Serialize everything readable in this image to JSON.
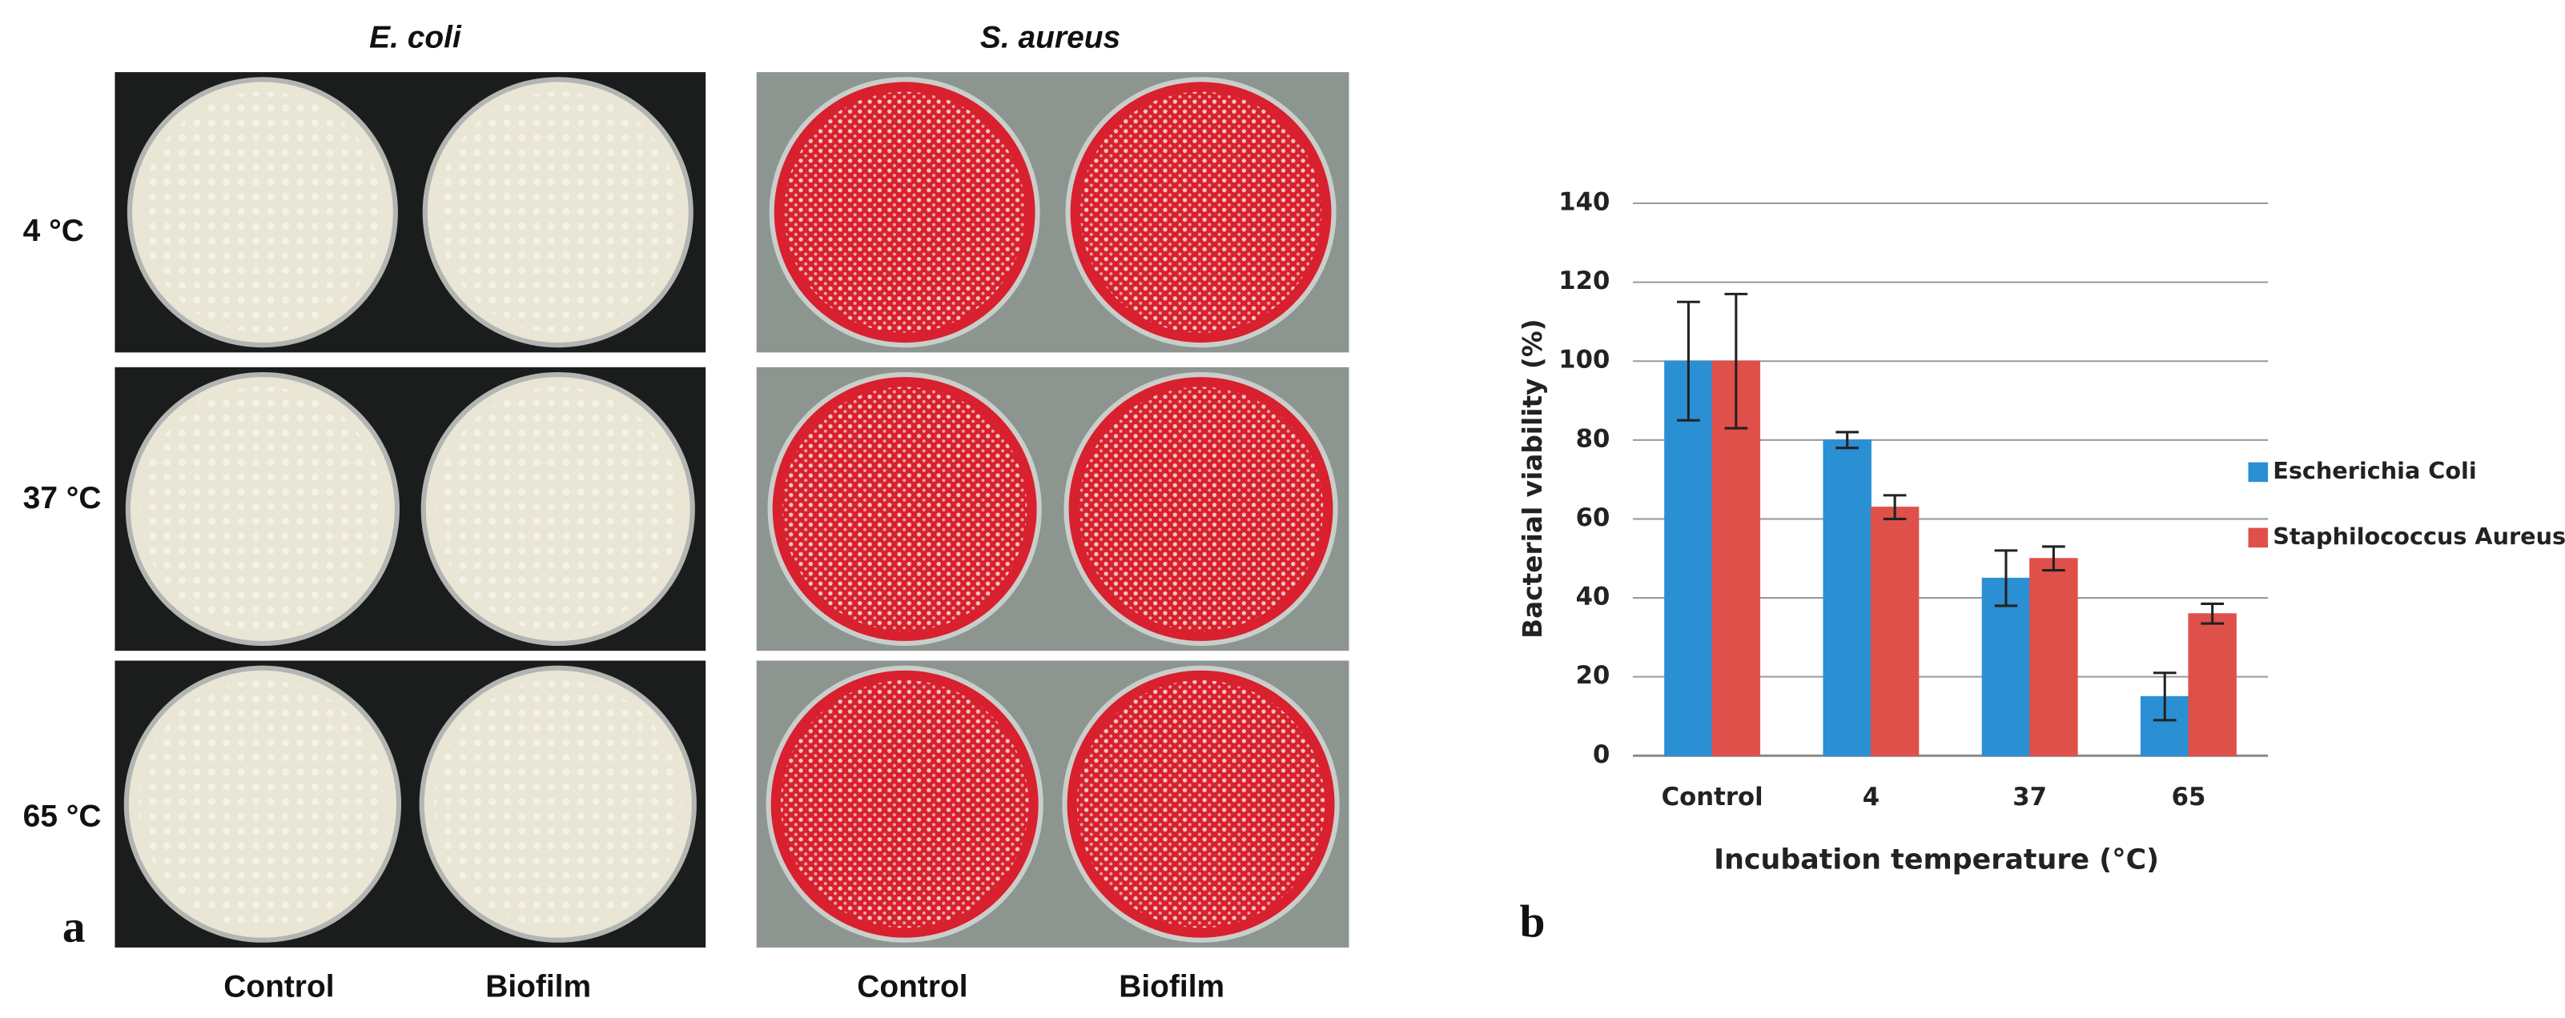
{
  "panel_a": {
    "label": "a",
    "organisms": [
      "E. coli",
      "S. aureus"
    ],
    "temperatures": [
      "4 °C",
      "37 °C",
      "65 °C"
    ],
    "columns": [
      "Control",
      "Biofilm",
      "Control",
      "Biofilm"
    ]
  },
  "chart_data": {
    "type": "bar",
    "panel_label": "b",
    "x_label": "Incubation temperature (°C)",
    "y_label": "Bacterial viability (%)",
    "categories": [
      "Control",
      "4",
      "37",
      "65"
    ],
    "series": [
      {
        "name": "Escherichia Coli",
        "color": "#2b8fd3",
        "values": [
          100,
          80,
          45,
          15
        ],
        "errors": [
          15,
          2,
          7,
          6
        ]
      },
      {
        "name": "Staphilococcus Aureus",
        "color": "#e0504a",
        "values": [
          100,
          63,
          50,
          36
        ],
        "errors": [
          17,
          3,
          3,
          2.5
        ]
      }
    ],
    "ylim": [
      0,
      140
    ],
    "yticks": [
      0,
      20,
      40,
      60,
      80,
      100,
      120,
      140
    ],
    "grid": true,
    "legend": "right"
  }
}
